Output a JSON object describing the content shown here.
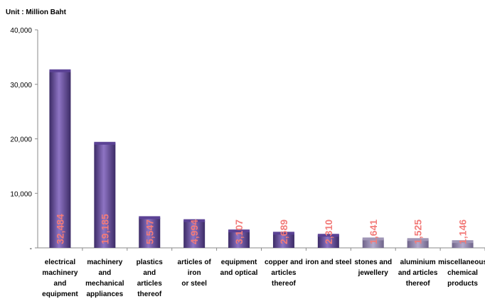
{
  "chart_data": {
    "type": "bar",
    "unit_label": "Unit : Million Baht",
    "categories": [
      [
        "electrical",
        "machinery",
        "and",
        "equipment"
      ],
      [
        "machinery",
        "and",
        "mechanical",
        "appliances"
      ],
      [
        "plastics",
        "and",
        "articles",
        "thereof"
      ],
      [
        "articles of",
        "iron",
        "or steel"
      ],
      [
        "equipment",
        "and optical"
      ],
      [
        "copper and",
        "articles",
        "thereof"
      ],
      [
        "iron and steel"
      ],
      [
        "stones and",
        "jewellery"
      ],
      [
        "aluminium",
        "and articles",
        "thereof"
      ],
      [
        "miscellaneous",
        "chemical",
        "products"
      ]
    ],
    "values": [
      32484,
      19185,
      5547,
      4994,
      3107,
      2689,
      2310,
      1641,
      1525,
      1146
    ],
    "value_labels": [
      "32,484",
      "19,185",
      "5,547",
      "4,994",
      "3,107",
      "2,689",
      "2,310",
      "1,641",
      "1,525",
      "1,146"
    ],
    "ylim": [
      0,
      40000
    ],
    "yticks": [
      0,
      10000,
      20000,
      30000,
      40000
    ],
    "ytick_labels": [
      "-",
      "10,000",
      "20,000",
      "30,000",
      "40,000"
    ],
    "grid": false,
    "colors": {
      "bar_dark": "#3c2b66",
      "bar_light": "#8e74c4",
      "bar_top": "#5b4295",
      "low_bar": "#9f95b5",
      "label": "#f27b79",
      "axis": "#8a8a8a"
    }
  }
}
